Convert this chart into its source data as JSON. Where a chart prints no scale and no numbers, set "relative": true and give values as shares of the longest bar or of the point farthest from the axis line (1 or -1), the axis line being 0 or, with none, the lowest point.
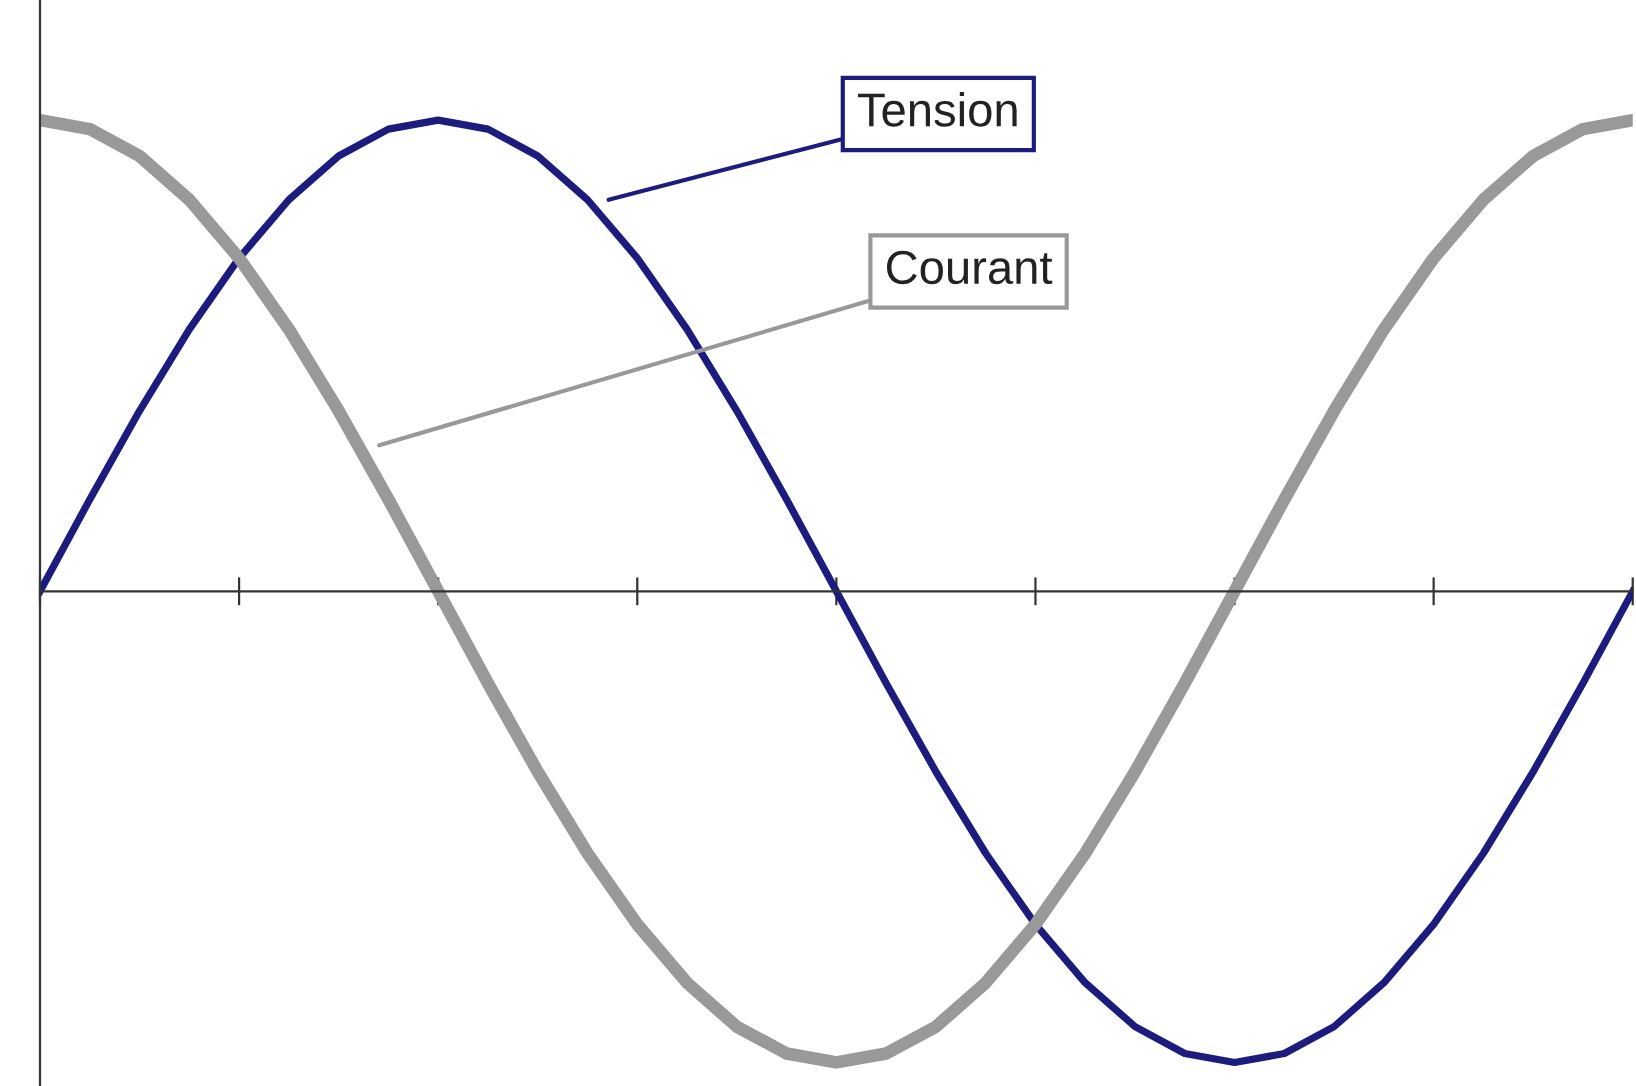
{
  "chart_data": {
    "type": "line",
    "relative": true,
    "categories": [
      null,
      null,
      null,
      null,
      null,
      null,
      null,
      null,
      null,
      null,
      null,
      null,
      null,
      null,
      null,
      null,
      null,
      null,
      null,
      null,
      null,
      null,
      null,
      null,
      null,
      null,
      null,
      null,
      null,
      null,
      null,
      null,
      null
    ],
    "series": [
      {
        "name": "Tension",
        "color": "#1c1c7e",
        "values": [
          0,
          0.195,
          0.383,
          0.556,
          0.707,
          0.831,
          0.924,
          0.981,
          1,
          0.981,
          0.924,
          0.831,
          0.707,
          0.556,
          0.383,
          0.195,
          0,
          -0.195,
          -0.383,
          -0.556,
          -0.707,
          -0.831,
          -0.924,
          -0.981,
          -1,
          -0.981,
          -0.924,
          -0.831,
          -0.707,
          -0.556,
          -0.383,
          -0.195,
          0
        ]
      },
      {
        "name": "Courant",
        "color": "#999999",
        "values": [
          1,
          0.981,
          0.924,
          0.831,
          0.707,
          0.556,
          0.383,
          0.195,
          0,
          -0.195,
          -0.383,
          -0.556,
          -0.707,
          -0.831,
          -0.924,
          -0.981,
          -1,
          -0.981,
          -0.924,
          -0.831,
          -0.707,
          -0.556,
          -0.383,
          -0.195,
          0,
          0.195,
          0.383,
          0.556,
          0.707,
          0.831,
          0.924,
          0.981,
          1
        ]
      }
    ],
    "grid": false,
    "legend": false,
    "marker": "none",
    "line_style": "solid"
  }
}
